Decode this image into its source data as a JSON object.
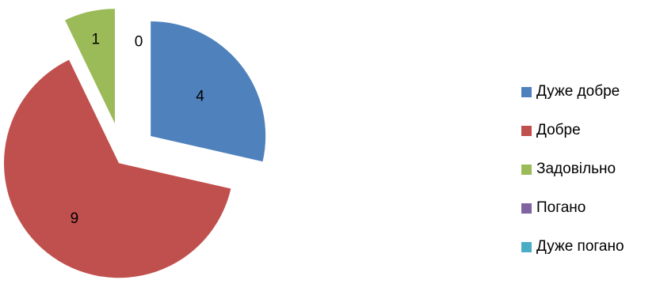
{
  "chart_data": {
    "type": "pie",
    "exploded": true,
    "categories": [
      "Дуже добре",
      "Добре",
      "Задовільно",
      "Погано",
      "Дуже погано"
    ],
    "values": [
      4,
      9,
      1,
      0,
      0
    ],
    "data_labels": [
      "4",
      "9",
      "1",
      "0",
      ""
    ],
    "colors": [
      "#4F81BD",
      "#C0504D",
      "#9BBB59",
      "#8064A2",
      "#4BACC6"
    ],
    "title": "",
    "legend_position": "right"
  }
}
